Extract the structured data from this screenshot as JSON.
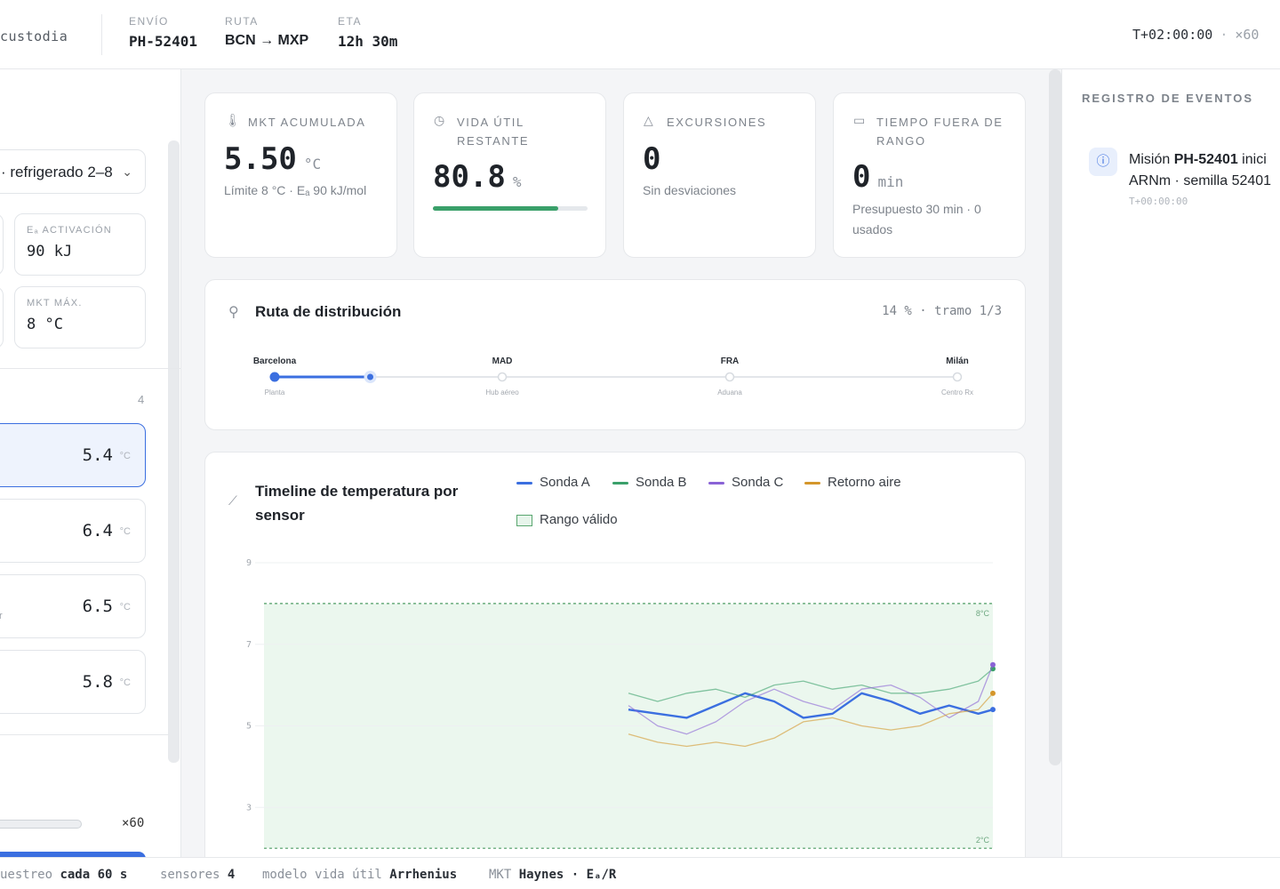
{
  "header": {
    "brand": "custodia",
    "fields": [
      {
        "label": "ENVÍO",
        "value": "PH-52401"
      },
      {
        "label": "RUTA",
        "value": "BCN → MXP"
      },
      {
        "label": "ETA",
        "value": "12h 30m"
      }
    ],
    "clock": "T+02:00:00",
    "speed": "×60"
  },
  "left": {
    "profile": "· refrigerado 2–8",
    "params": [
      {
        "label": "Eₐ ACTIVACIÓN",
        "value": "90 kJ"
      },
      {
        "label": "MKT MÁX.",
        "value": "8 °C"
      }
    ],
    "sensor_count": "4",
    "sensors": [
      {
        "value": "5.4",
        "unit": "°C",
        "tag": ""
      },
      {
        "value": "6.4",
        "unit": "°C",
        "tag": ""
      },
      {
        "value": "6.5",
        "unit": "°C",
        "tag": "r"
      },
      {
        "value": "5.8",
        "unit": "°C",
        "tag": ""
      }
    ],
    "speed": "×60"
  },
  "kpis": {
    "mkt": {
      "label": "MKT ACUMULADA",
      "value": "5.50",
      "unit": "°C",
      "sub": "Límite 8 °C · Eₐ 90 kJ/mol"
    },
    "life": {
      "label": "VIDA ÚTIL RESTANTE",
      "value": "80.8",
      "unit": "%",
      "fraction": 0.808
    },
    "excursions": {
      "label": "EXCURSIONES",
      "value": "0",
      "sub": "Sin desviaciones"
    },
    "out_of_range": {
      "label": "TIEMPO FUERA DE RANGO",
      "value": "0",
      "unit": "min",
      "sub": "Presupuesto 30 min · 0 usados"
    }
  },
  "route": {
    "title": "Ruta de distribución",
    "progress": "14 % · tramo 1/3",
    "progress_fraction": 0.14,
    "stops": [
      {
        "name": "Barcelona",
        "tag": "Planta"
      },
      {
        "name": "MAD",
        "tag": "Hub aéreo"
      },
      {
        "name": "FRA",
        "tag": "Aduana"
      },
      {
        "name": "Milán",
        "tag": "Centro Rx"
      }
    ]
  },
  "chart": {
    "title": "Timeline de temperatura por sensor",
    "legend": [
      {
        "name": "Sonda A",
        "color": "#3b6fe0"
      },
      {
        "name": "Sonda B",
        "color": "#3aa06a"
      },
      {
        "name": "Sonda C",
        "color": "#8a63d6"
      },
      {
        "name": "Retorno aire",
        "color": "#d4962b"
      }
    ],
    "range_label": "Rango válido"
  },
  "chart_data": {
    "type": "line",
    "title": "Timeline de temperatura por sensor",
    "y_ticks": [
      "9",
      "7",
      "5",
      "3"
    ],
    "ylim": [
      2.2,
      9
    ],
    "xlim": [
      0,
      1
    ],
    "valid_range": [
      2,
      8
    ],
    "range_labels": {
      "upper": "8°C",
      "lower": "2°C"
    },
    "x": [
      0.5,
      0.54,
      0.58,
      0.62,
      0.66,
      0.7,
      0.74,
      0.78,
      0.82,
      0.86,
      0.9,
      0.94,
      0.98,
      1.0
    ],
    "series": [
      {
        "name": "Sonda A",
        "color": "#3b6fe0",
        "values": [
          5.4,
          5.3,
          5.2,
          5.5,
          5.8,
          5.6,
          5.2,
          5.3,
          5.8,
          5.6,
          5.3,
          5.5,
          5.3,
          5.4
        ]
      },
      {
        "name": "Sonda B",
        "color": "#3aa06a",
        "values": [
          5.8,
          5.6,
          5.8,
          5.9,
          5.7,
          6.0,
          6.1,
          5.9,
          6.0,
          5.8,
          5.8,
          5.9,
          6.1,
          6.4
        ]
      },
      {
        "name": "Sonda C",
        "color": "#8a63d6",
        "values": [
          5.5,
          5.0,
          4.8,
          5.1,
          5.6,
          5.9,
          5.6,
          5.4,
          5.9,
          6.0,
          5.7,
          5.2,
          5.6,
          6.5
        ]
      },
      {
        "name": "Retorno aire",
        "color": "#d4962b",
        "values": [
          4.8,
          4.6,
          4.5,
          4.6,
          4.5,
          4.7,
          5.1,
          5.2,
          5.0,
          4.9,
          5.0,
          5.3,
          5.4,
          5.8
        ]
      }
    ]
  },
  "events": {
    "title": "REGISTRO DE EVENTOS",
    "items": [
      {
        "prefix": "Misión ",
        "strong": "PH-52401",
        "suffix": " inici",
        "line2": "ARNm · semilla 52401",
        "time": "T+00:00:00"
      }
    ]
  },
  "footer": [
    {
      "label": "uestreo",
      "value": "cada 60 s"
    },
    {
      "label": "sensores",
      "value": "4"
    },
    {
      "label": "modelo vida útil",
      "value": "Arrhenius"
    },
    {
      "label": "MKT",
      "value": "Haynes · Eₐ/R"
    }
  ]
}
